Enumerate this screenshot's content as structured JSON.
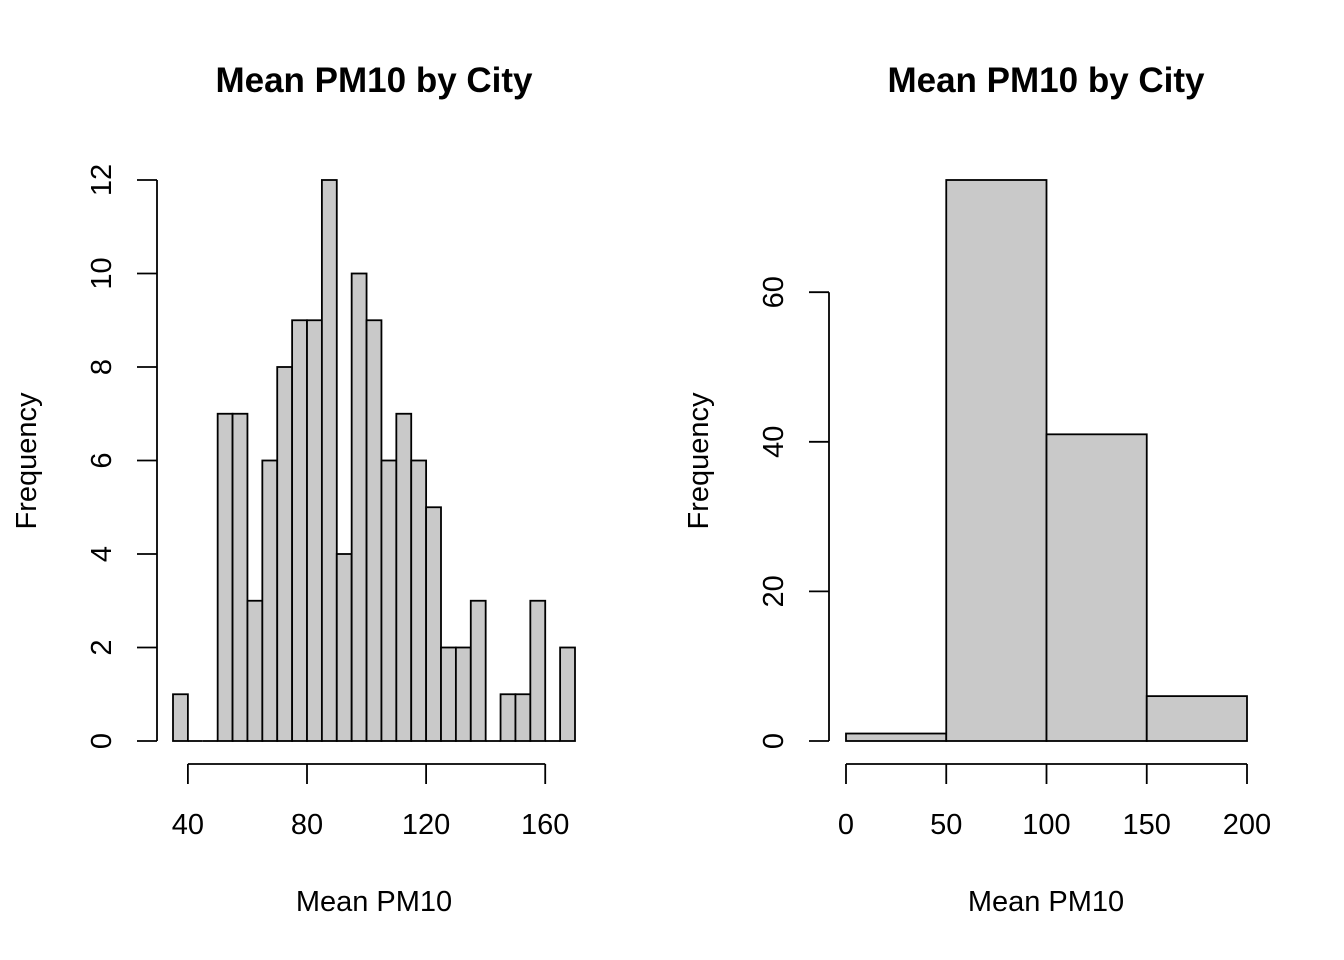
{
  "chart_data": [
    {
      "type": "bar",
      "title": "Mean PM10 by City",
      "xlabel": "Mean PM10",
      "ylabel": "Frequency",
      "bin_edges": [
        35,
        40,
        45,
        50,
        55,
        60,
        65,
        70,
        75,
        80,
        85,
        90,
        95,
        100,
        105,
        110,
        115,
        120,
        125,
        130,
        135,
        140,
        145,
        150,
        155,
        160,
        165,
        170
      ],
      "values": [
        1,
        0,
        0,
        7,
        7,
        3,
        6,
        8,
        9,
        9,
        12,
        4,
        10,
        9,
        6,
        7,
        6,
        5,
        2,
        2,
        3,
        0,
        1,
        1,
        3,
        0,
        2
      ],
      "x_ticks": [
        40,
        80,
        120,
        160
      ],
      "y_ticks": [
        0,
        2,
        4,
        6,
        8,
        10,
        12
      ],
      "xlim": [
        35,
        170
      ],
      "ylim": [
        0,
        12
      ],
      "bar_color": "#c9c9c9"
    },
    {
      "type": "bar",
      "title": "Mean PM10 by City",
      "xlabel": "Mean PM10",
      "ylabel": "Frequency",
      "bin_edges": [
        0,
        50,
        100,
        150,
        200
      ],
      "values": [
        1,
        75,
        41,
        6
      ],
      "x_ticks": [
        0,
        50,
        100,
        150,
        200
      ],
      "y_ticks": [
        0,
        20,
        40,
        60
      ],
      "xlim": [
        0,
        200
      ],
      "ylim": [
        0,
        75
      ],
      "bar_color": "#c9c9c9"
    }
  ]
}
